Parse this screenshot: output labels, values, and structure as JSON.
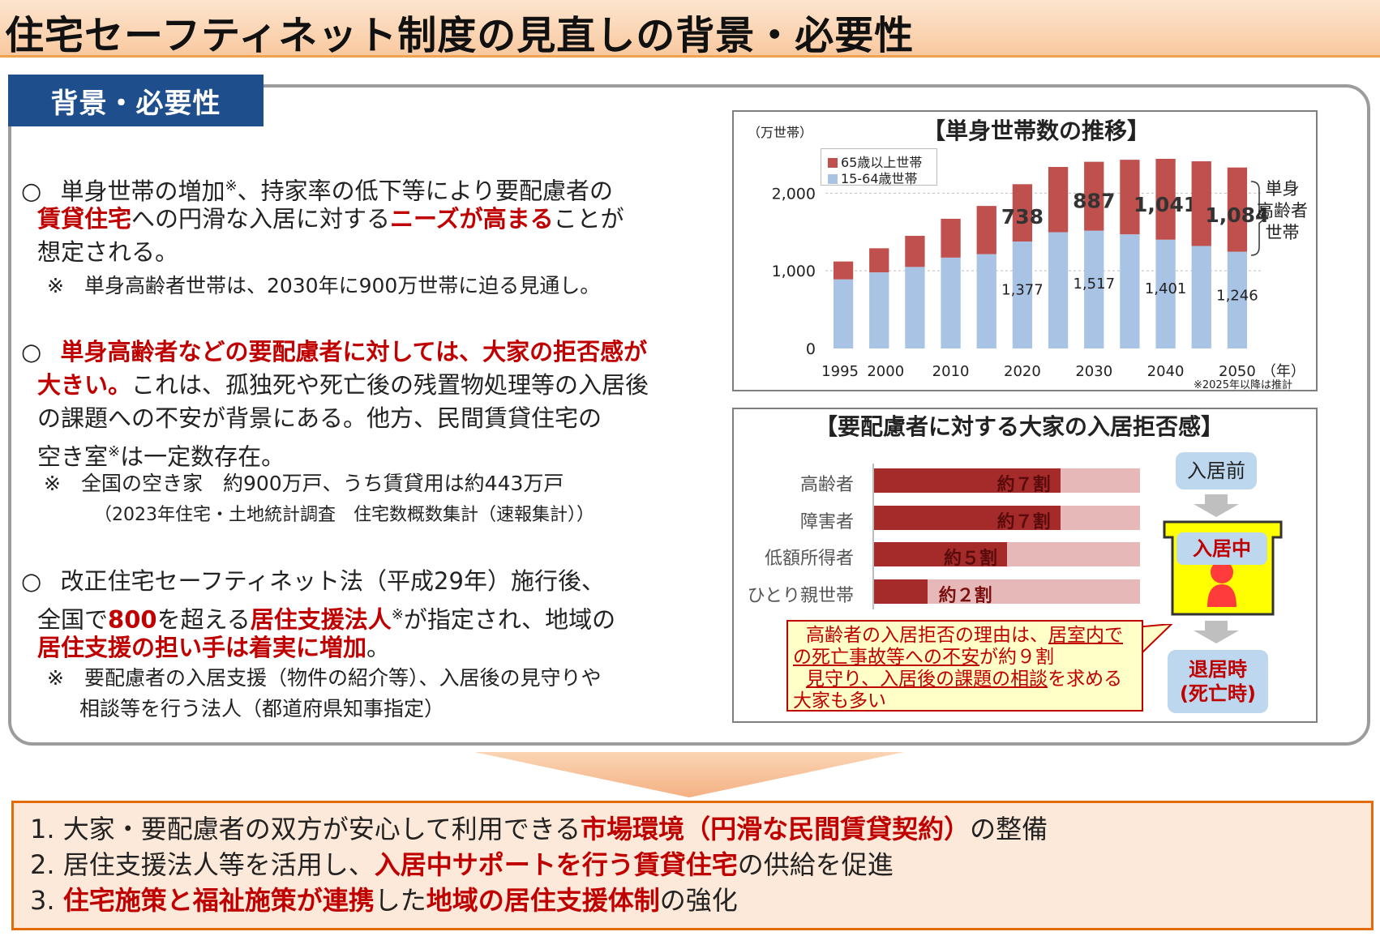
{
  "header": {
    "title": "住宅セーフティネット制度の見直しの背景・必要性"
  },
  "section_tab": "背景・必要性",
  "points": {
    "p1": {
      "mark": "○",
      "l1a": "単身世帯の増加",
      "l1sup": "※",
      "l1b": "、持家率の低下等により要配慮者の",
      "l2a": "賃貸住宅",
      "l2b": "への円滑な入居に対する",
      "l2c": "ニーズが高まる",
      "l2d": "ことが",
      "l3": "想定される。",
      "note": "※　単身高齢者世帯は、2030年に900万世帯に迫る見通し。"
    },
    "p2": {
      "mark": "○",
      "l1": "単身高齢者などの要配慮者に対しては、大家の拒否感が",
      "l2a": "大きい。",
      "l2b": "これは、孤独死や死亡後の残置物処理等の入居後",
      "l3": "の課題への不安が背景にある。他方、民間賃貸住宅の",
      "l4a": "空き室",
      "l4sup": "※",
      "l4b": "は一定数存在。",
      "note1": "※　全国の空き家　約900万戸、うち賃貸用は約443万戸",
      "note2": "（2023年住宅・土地統計調査　住宅数概数集計（速報集計））"
    },
    "p3": {
      "mark": "○",
      "l1": "改正住宅セーフティネット法（平成29年）施行後、",
      "l2a": "全国で",
      "l2b": "800",
      "l2c": "を超える",
      "l2d": "居住支援法人",
      "l2sup": "※",
      "l2e": "が指定され、地域の",
      "l3a": "居住支援の担い手は着実に増加",
      "l3b": "。",
      "note1": "※　要配慮者の入居支援（物件の紹介等）、入居後の見守りや",
      "note2": "相談等を行う法人（都道府県知事指定）"
    }
  },
  "chart_data": {
    "type": "bar",
    "stacked": true,
    "title": "【単身世帯数の推移】",
    "unit": "（万世帯）",
    "x": [
      1995,
      2000,
      2005,
      2010,
      2015,
      2020,
      2025,
      2030,
      2035,
      2040,
      2045,
      2050
    ],
    "tick_labels": [
      "1995",
      "2000",
      "2010",
      "2020",
      "2030",
      "2040",
      "2050"
    ],
    "tick_years": [
      1995,
      2000,
      2010,
      2020,
      2030,
      2040,
      2050
    ],
    "x_suffix": "（年）",
    "ylim": [
      0,
      2400
    ],
    "yticks": [
      0,
      1000,
      2000
    ],
    "ytick_labels": [
      "0",
      "1,000",
      "2,000"
    ],
    "series": [
      {
        "name": "15-64歳世帯",
        "color": "#a9c3e4",
        "values": [
          890,
          980,
          1050,
          1170,
          1215,
          1377,
          1497,
          1517,
          1470,
          1401,
          1320,
          1246
        ]
      },
      {
        "name": "65歳以上世帯",
        "color": "#c0504d",
        "values": [
          230,
          310,
          400,
          500,
          620,
          738,
          840,
          887,
          960,
          1041,
          1090,
          1084
        ]
      }
    ],
    "labels_65": {
      "2020": "738",
      "2030": "887",
      "2040": "1,041",
      "2050": "1,084"
    },
    "labels_1564": {
      "2020": "1,377",
      "2030": "1,517",
      "2040": "1,401",
      "2050": "1,246"
    },
    "brace_label": [
      "単身",
      "高齢者",
      "世帯"
    ],
    "footnote": "※2025年以降は推計"
  },
  "refusal": {
    "title": "【要配慮者に対する大家の入居拒否感】",
    "rows": [
      {
        "label": "高齢者",
        "value": 0.7,
        "text": "約７割"
      },
      {
        "label": "障害者",
        "value": 0.7,
        "text": "約７割"
      },
      {
        "label": "低額所得者",
        "value": 0.5,
        "text": "約５割"
      },
      {
        "label": "ひとり親世帯",
        "value": 0.2,
        "text": "約２割"
      }
    ],
    "stage_before": "入居前",
    "stage_during": "入居中",
    "stage_after_1": "退居時",
    "stage_after_2": "(死亡時)",
    "reason": {
      "a": "高齢者の入居拒否の理由は、",
      "b": "居室内での死亡事故等への不安",
      "c": "が約９割",
      "d": "見守り、入居後の課題の相談",
      "e": "を求める大家も多い"
    }
  },
  "bottom": {
    "i1a": "1. 大家・要配慮者の双方が安心して利用できる",
    "i1b": "市場環境（円滑な民間賃貸契約）",
    "i1c": "の整備",
    "i2a": "2. 居住支援法人等を活用し、",
    "i2b": "入居中サポートを行う賃貸住宅",
    "i2c": "の供給を促進",
    "i3a": "3. ",
    "i3b": "住宅施策と福祉施策が連携",
    "i3c": "した",
    "i3d": "地域の居住支援体制",
    "i3e": "の強化"
  },
  "colors": {
    "accent_red": "#c00000",
    "navy": "#1f4e8c",
    "orange": "#e26b0a"
  }
}
